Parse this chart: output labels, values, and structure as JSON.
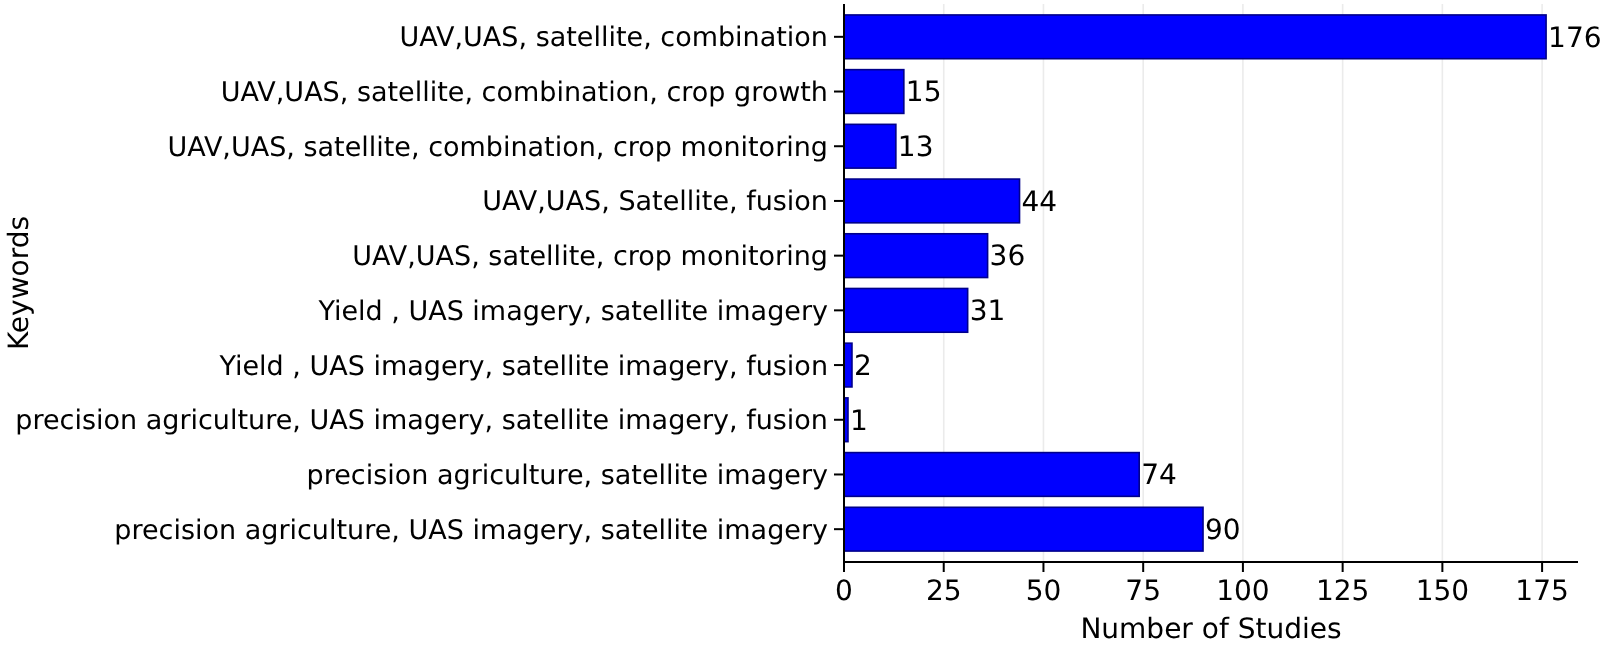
{
  "chart_data": {
    "type": "bar",
    "orientation": "horizontal",
    "xlabel": "Number of Studies",
    "ylabel": "Keywords",
    "categories": [
      "UAV,UAS, satellite, combination",
      "UAV,UAS, satellite, combination, crop growth",
      "UAV,UAS, satellite, combination, crop monitoring",
      "UAV,UAS, Satellite, fusion",
      "UAV,UAS, satellite, crop monitoring",
      "Yield , UAS imagery, satellite imagery",
      "Yield , UAS imagery, satellite imagery, fusion",
      "precision agriculture, UAS imagery, satellite imagery, fusion",
      "precision agriculture, satellite imagery",
      "precision agriculture, UAS imagery, satellite imagery"
    ],
    "values": [
      176,
      15,
      13,
      44,
      36,
      31,
      2,
      1,
      74,
      90
    ],
    "color": "#0000ff",
    "xlim": [
      0,
      184
    ],
    "xticks": [
      0,
      25,
      50,
      75,
      100,
      125,
      150,
      175
    ],
    "grid": "x",
    "data_labels": true
  }
}
